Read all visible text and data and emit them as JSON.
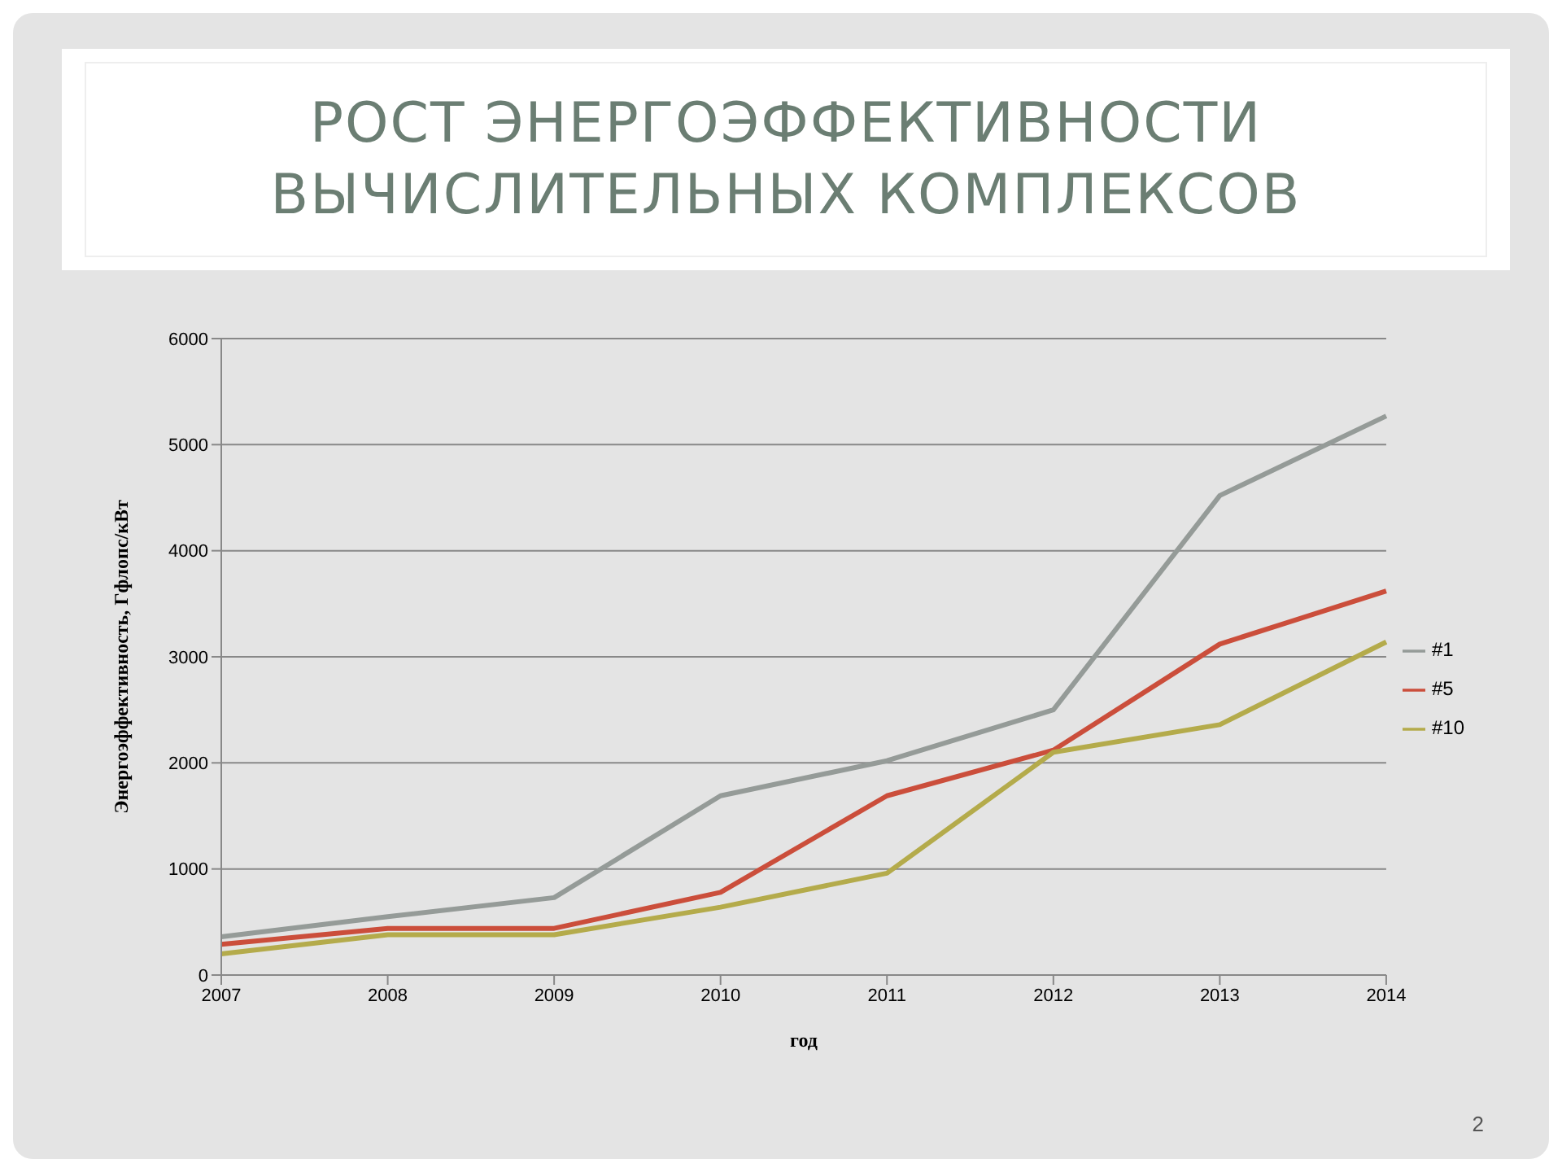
{
  "chart_data": {
    "type": "line",
    "title": "РОСТ ЭНЕРГОЭФФЕКТИВНОСТИ ВЫЧИСЛИТЕЛЬНЫХ КОМПЛЕКСОВ",
    "xlabel": "год",
    "ylabel": "Энергоэффективность, Гфлопс/кВт",
    "categories": [
      "2007",
      "2008",
      "2009",
      "2010",
      "2011",
      "2012",
      "2013",
      "2014"
    ],
    "series": [
      {
        "name": "#1",
        "color": "#959b98",
        "values": [
          360,
          550,
          730,
          1690,
          2020,
          2500,
          4520,
          5270
        ]
      },
      {
        "name": "#5",
        "color": "#cb4e3b",
        "values": [
          290,
          440,
          440,
          780,
          1690,
          2120,
          3120,
          3620
        ]
      },
      {
        "name": "#10",
        "color": "#b4ab4b",
        "values": [
          200,
          380,
          380,
          640,
          960,
          2100,
          2360,
          3140
        ]
      }
    ],
    "ylim": [
      0,
      6000
    ],
    "yticks": [
      0,
      1000,
      2000,
      3000,
      4000,
      5000,
      6000
    ],
    "grid": "y",
    "legend": "right",
    "marker": "none",
    "line_style": "solid",
    "annotations": [
      "2"
    ]
  }
}
